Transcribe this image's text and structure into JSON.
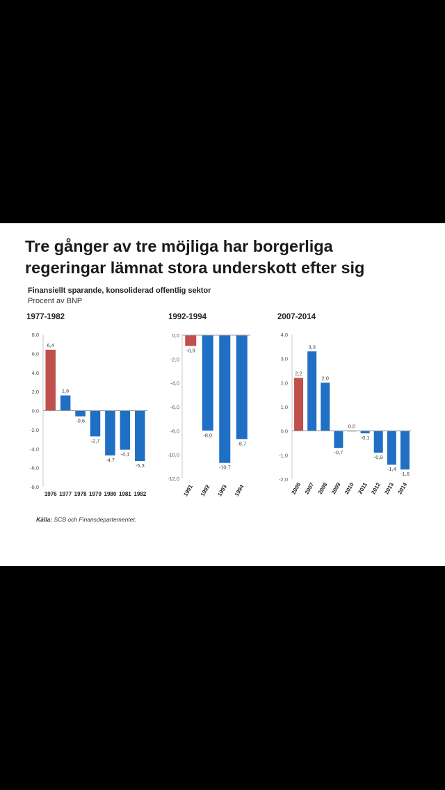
{
  "title": {
    "line1": "Tre gånger av tre möjliga har borgerliga",
    "line2": "regeringar lämnat stora underskott efter sig"
  },
  "subtitle": "Finansiellt sparande,  konsoliderad  offentlig sektor",
  "unit": "Procent av BNP",
  "source": {
    "label": "Källa:",
    "text": " SCB och Finansdepartementet."
  },
  "colors": {
    "red": "#c0504d",
    "blue": "#1f6fc5"
  },
  "chart_data": [
    {
      "type": "bar",
      "title": "1977-1982",
      "categories": [
        "1976",
        "1977",
        "1978",
        "1979",
        "1980",
        "1981",
        "1982"
      ],
      "values": [
        6.4,
        1.6,
        -0.6,
        -2.7,
        -4.7,
        -4.1,
        -5.3
      ],
      "labels": [
        "6,4",
        "1,6",
        "-0,6",
        "-2,7",
        "-4,7",
        "-4,1",
        "-5,3"
      ],
      "highlight": [
        0
      ],
      "ylim": [
        -8,
        8
      ],
      "yticks": [
        8,
        6,
        4,
        2,
        0,
        -2,
        -4,
        -6,
        -8
      ],
      "ytick_labels": [
        "8,0",
        "6,0",
        "4,0",
        "2,0",
        "0,0",
        "-2,0",
        "-4,0",
        "-6,0",
        "-8,0"
      ],
      "xlabel_style": "horizontal"
    },
    {
      "type": "bar",
      "title": "1992-1994",
      "categories": [
        "1991",
        "1992",
        "1993",
        "1994"
      ],
      "values": [
        -0.9,
        -8.0,
        -10.7,
        -8.7
      ],
      "labels": [
        "-0,9",
        "-8,0",
        "-10,7",
        "-8,7"
      ],
      "highlight": [
        0
      ],
      "ylim": [
        -12,
        0
      ],
      "yticks": [
        0,
        -2,
        -4,
        -6,
        -8,
        -10,
        -12
      ],
      "ytick_labels": [
        "0,0",
        "-2,0",
        "-4,0",
        "-6,0",
        "-8,0",
        "-10,0",
        "-12,0"
      ],
      "xlabel_style": "rotated"
    },
    {
      "type": "bar",
      "title": "2007-2014",
      "categories": [
        "2006",
        "2007",
        "2008",
        "2009",
        "2010",
        "2011",
        "2012",
        "2013",
        "2014"
      ],
      "values": [
        2.2,
        3.3,
        2.0,
        -0.7,
        0.0,
        -0.1,
        -0.9,
        -1.4,
        -1.6
      ],
      "labels": [
        "2,2",
        "3,3",
        "2,0",
        "-0,7",
        "0,0",
        "-0,1",
        "-0,9",
        "-1,4",
        "-1,6"
      ],
      "highlight": [
        0
      ],
      "ylim": [
        -2,
        4
      ],
      "yticks": [
        4,
        3,
        2,
        1,
        0,
        -1,
        -2
      ],
      "ytick_labels": [
        "4,0",
        "3,0",
        "2,0",
        "1,0",
        "0,0",
        "-1,0",
        "-2,0"
      ],
      "xlabel_style": "rotated"
    }
  ]
}
